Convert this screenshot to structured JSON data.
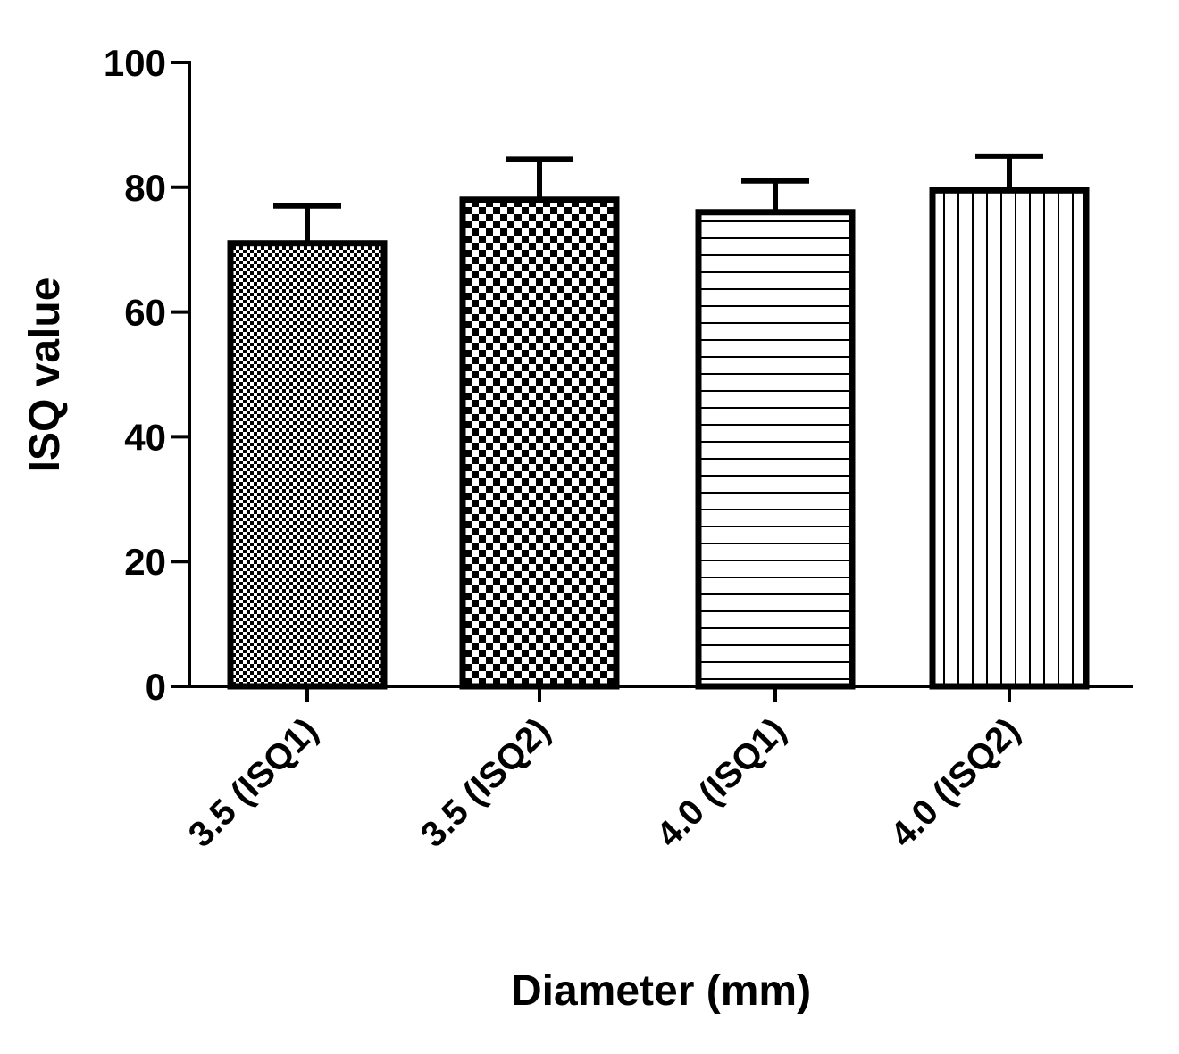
{
  "chart_data": {
    "type": "bar",
    "categories": [
      "3.5 (ISQ1)",
      "3.5 (ISQ2)",
      "4.0 (ISQ1)",
      "4.0 (ISQ2)"
    ],
    "values": [
      71,
      78,
      76,
      79.5
    ],
    "error_upper": [
      77,
      84.5,
      81,
      85
    ],
    "patterns": [
      "fine-checker",
      "checker",
      "horizontal-lines",
      "vertical-lines"
    ],
    "xlabel": "Diameter (mm)",
    "ylabel": "ISQ value",
    "ylim": [
      0,
      100
    ],
    "yticks": [
      0,
      20,
      40,
      60,
      80,
      100
    ],
    "ytick_labels": [
      "0",
      "20",
      "40",
      "60",
      "80",
      "100"
    ],
    "grid": false,
    "colors": {
      "stroke": "#000000",
      "fill": "#ffffff"
    }
  }
}
